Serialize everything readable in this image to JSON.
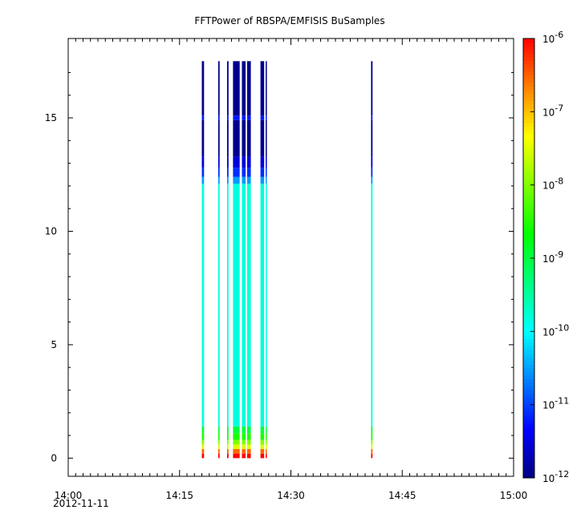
{
  "chart_data": {
    "type": "heatmap",
    "title": "FFTPower of RBSPA/EMFISIS  BuSamples",
    "x_ticks": [
      "14:00",
      "14:15",
      "14:30",
      "14:45",
      "15:00"
    ],
    "x_sublabel": "2012-11-11",
    "x_range_minutes": [
      0,
      60
    ],
    "y_ticks": [
      "0",
      "5",
      "10",
      "15"
    ],
    "y_range": [
      -0.8,
      18.5
    ],
    "colorbar": {
      "scale": "log",
      "range": [
        1e-12,
        1e-06
      ],
      "tick_values": [
        1e-12,
        1e-11,
        1e-10,
        1e-09,
        1e-08,
        1e-07,
        1e-06
      ],
      "tick_mantissa": [
        "10",
        "10",
        "10",
        "10",
        "10",
        "10",
        "10"
      ],
      "tick_exponent": [
        "-12",
        "-11",
        "-10",
        "-9",
        "-8",
        "-7",
        "-6"
      ],
      "colors": [
        "#000080",
        "#0000ff",
        "#0080ff",
        "#00ffff",
        "#00ff80",
        "#00ff00",
        "#80ff00",
        "#ffff00",
        "#ff8000",
        "#ff0000"
      ]
    },
    "series": [
      {
        "start": 18.0,
        "end": 18.3
      },
      {
        "start": 20.2,
        "end": 20.4
      },
      {
        "start": 21.4,
        "end": 21.6
      },
      {
        "start": 22.2,
        "end": 23.1
      },
      {
        "start": 23.4,
        "end": 23.9
      },
      {
        "start": 24.1,
        "end": 24.6
      },
      {
        "start": 25.9,
        "end": 26.4
      },
      {
        "start": 26.6,
        "end": 26.7
      },
      {
        "start": 40.8,
        "end": 41.0
      }
    ],
    "frequency_profile": [
      {
        "y0": 0.0,
        "y1": 0.2,
        "power": 1e-06
      },
      {
        "y0": 0.2,
        "y1": 0.4,
        "power": 3e-07
      },
      {
        "y0": 0.4,
        "y1": 0.6,
        "power": 3e-08
      },
      {
        "y0": 0.6,
        "y1": 0.8,
        "power": 1e-08
      },
      {
        "y0": 0.8,
        "y1": 1.1,
        "power": 3e-09
      },
      {
        "y0": 1.1,
        "y1": 1.4,
        "power": 1e-09
      },
      {
        "y0": 1.4,
        "y1": 12.1,
        "power": 1.5e-10
      },
      {
        "y0": 12.1,
        "y1": 12.4,
        "power": 3e-11
      },
      {
        "y0": 12.4,
        "y1": 12.8,
        "power": 8e-12
      },
      {
        "y0": 12.8,
        "y1": 13.3,
        "power": 3e-12
      },
      {
        "y0": 13.3,
        "y1": 14.9,
        "power": 1.2e-12
      },
      {
        "y0": 14.9,
        "y1": 15.1,
        "power": 6e-12
      },
      {
        "y0": 15.1,
        "y1": 17.5,
        "power": 1.2e-12
      }
    ]
  }
}
